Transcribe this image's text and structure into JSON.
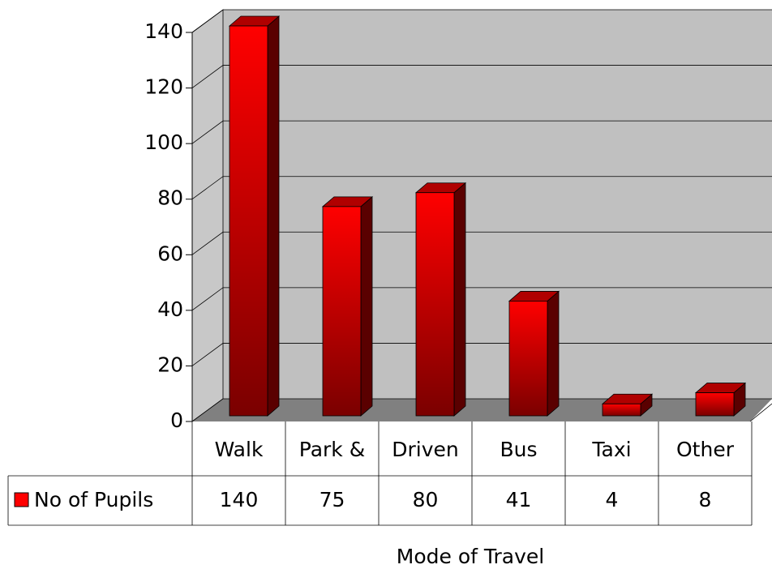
{
  "chart_data": {
    "type": "bar3d",
    "categories": [
      "Walk",
      "Park &",
      "Driven",
      "Bus",
      "Taxi",
      "Other"
    ],
    "series": [
      {
        "name": "No of Pupils",
        "color": "#ff0000",
        "values": [
          140,
          75,
          80,
          41,
          4,
          8
        ]
      }
    ],
    "x_label": "Mode of Travel",
    "ylim": [
      0,
      140
    ],
    "yticks": [
      0,
      20,
      40,
      60,
      80,
      100,
      120,
      140
    ],
    "grid": true
  }
}
